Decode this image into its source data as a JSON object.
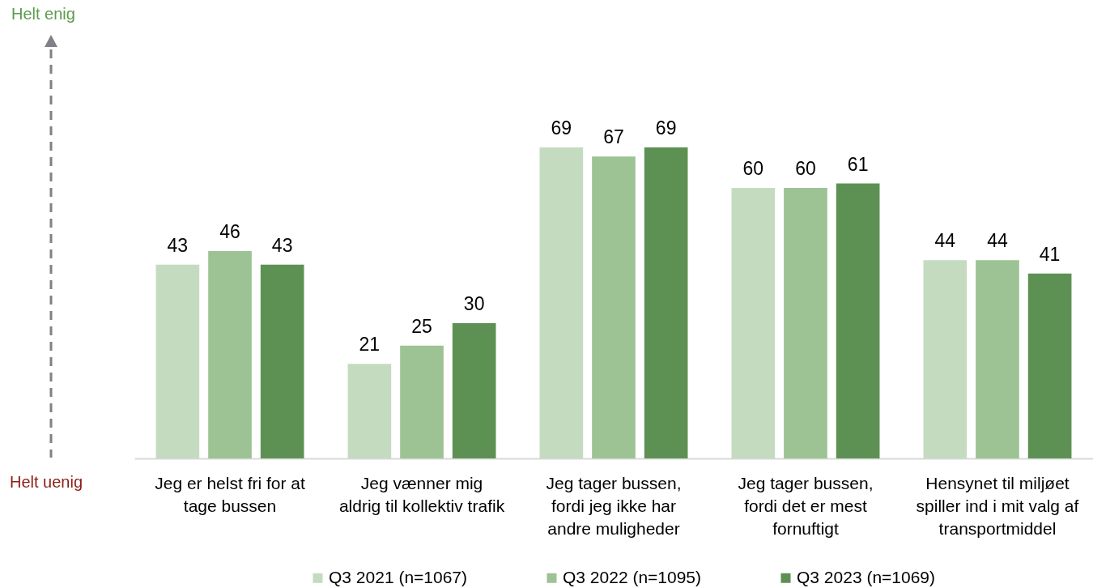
{
  "chart_data": {
    "type": "bar",
    "categories": [
      "Jeg er helst fri for at\ntage bussen",
      "Jeg vænner mig\naldrig til kollektiv trafik",
      "Jeg tager bussen,\nfordi jeg ikke har\nandre muligheder",
      "Jeg tager bussen,\nfordi det er mest\nfornuftigt",
      "Hensynet til miljøet\nspiller ind i mit valg af\ntransportmiddel"
    ],
    "series": [
      {
        "name": "Q3 2021 (n=1067)",
        "color": "#c5dbc0",
        "values": [
          43,
          21,
          69,
          60,
          44
        ]
      },
      {
        "name": "Q3 2022 (n=1095)",
        "color": "#9dc293",
        "values": [
          46,
          25,
          67,
          60,
          44
        ]
      },
      {
        "name": "Q3 2023 (n=1069)",
        "color": "#5d9154",
        "values": [
          43,
          30,
          69,
          61,
          41
        ]
      }
    ],
    "data_labels": true,
    "legend": "bottom",
    "annotations": [
      "Helt enig",
      "Helt uenig"
    ]
  }
}
